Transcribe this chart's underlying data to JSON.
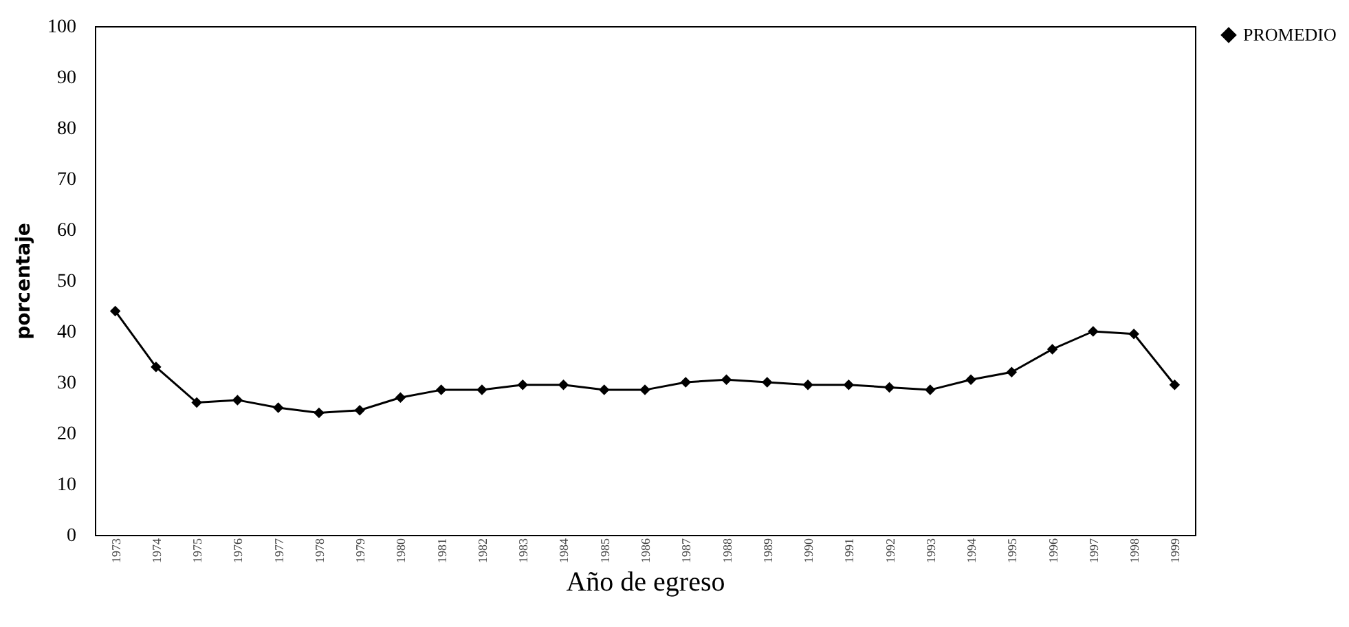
{
  "chart_data": {
    "type": "line",
    "xlabel": "Año de egreso",
    "ylabel": "porcentaje",
    "categories": [
      "1973",
      "1974",
      "1975",
      "1976",
      "1977",
      "1978",
      "1979",
      "1980",
      "1981",
      "1982",
      "1983",
      "1984",
      "1985",
      "1986",
      "1987",
      "1988",
      "1989",
      "1990",
      "1991",
      "1992",
      "1993",
      "1994",
      "1995",
      "1996",
      "1997",
      "1998",
      "1999"
    ],
    "series": [
      {
        "name": "PROMEDIO",
        "color": "#000000",
        "values": [
          44,
          33,
          26,
          26.5,
          25,
          24,
          24.5,
          27,
          28.5,
          28.5,
          29.5,
          29.5,
          28.5,
          28.5,
          30,
          30.5,
          30,
          29.5,
          29.5,
          29,
          28.5,
          30.5,
          32,
          36.5,
          40,
          39.5,
          29.5
        ]
      }
    ],
    "ylim": [
      0,
      100
    ],
    "yticks": [
      0,
      10,
      20,
      30,
      40,
      50,
      60,
      70,
      80,
      90,
      100
    ],
    "marker": "diamond",
    "legend": "right"
  }
}
